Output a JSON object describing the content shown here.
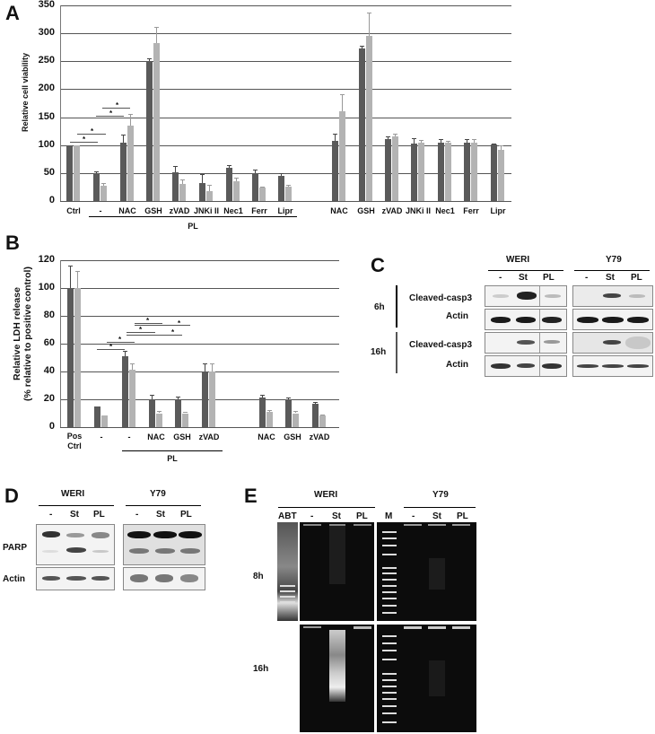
{
  "panels": {
    "A": "A",
    "B": "B",
    "C": "C",
    "D": "D",
    "E": "E"
  },
  "chart_data": [
    {
      "panel": "A",
      "type": "bar",
      "title": "",
      "ylabel": "Relative cell viability",
      "xlabel": "",
      "ylim": [
        0,
        350
      ],
      "yticks": [
        0,
        50,
        100,
        150,
        200,
        250,
        300,
        350
      ],
      "grid": true,
      "legend": null,
      "categories": [
        "Ctrl",
        "-",
        "NAC",
        "GSH",
        "zVAD",
        "JNKi II",
        "Nec1",
        "Ferr",
        "Lipr",
        "NAC",
        "GSH",
        "zVAD",
        "JNKi II",
        "Nec1",
        "Ferr",
        "Lipr"
      ],
      "group_labels": [
        {
          "label": "PL",
          "span": [
            "-",
            "Lipr"
          ]
        }
      ],
      "series": [
        {
          "name": "WERI (dark)",
          "color": "#5a5a5a",
          "values": [
            100,
            50,
            104,
            250,
            52,
            32,
            59,
            50,
            45,
            107,
            273,
            110,
            103,
            105,
            104,
            101
          ],
          "errors": [
            0,
            3,
            15,
            5,
            10,
            16,
            6,
            6,
            4,
            14,
            5,
            5,
            9,
            5,
            7,
            2
          ]
        },
        {
          "name": "Y79 (light)",
          "color": "#b3b3b3",
          "values": [
            100,
            27,
            135,
            282,
            30,
            18,
            36,
            24,
            25,
            160,
            295,
            115,
            105,
            104,
            104,
            92
          ],
          "errors": [
            0,
            5,
            20,
            30,
            8,
            11,
            5,
            2,
            4,
            31,
            42,
            5,
            4,
            4,
            7,
            8
          ]
        }
      ],
      "annotations": [
        "*",
        "*",
        "*",
        "*"
      ]
    },
    {
      "panel": "B",
      "type": "bar",
      "title": "",
      "ylabel": "Relative LDH release (% relative to positive control)",
      "ylabel_line1": "Relative LDH release",
      "ylabel_line2": "(% relative to positive control)",
      "xlabel": "",
      "ylim": [
        0,
        120
      ],
      "yticks": [
        0,
        20,
        40,
        60,
        80,
        100,
        120
      ],
      "grid": true,
      "legend": null,
      "categories": [
        "Pos Ctrl",
        "-",
        "-",
        "NAC",
        "GSH",
        "zVAD",
        "NAC",
        "GSH",
        "zVAD"
      ],
      "group_labels": [
        {
          "label": "PL",
          "span": [
            "-",
            "zVAD"
          ]
        }
      ],
      "series": [
        {
          "name": "WERI (dark)",
          "color": "#5a5a5a",
          "values": [
            100,
            15,
            51,
            20,
            20,
            40,
            21,
            20,
            16.5
          ],
          "errors": [
            16,
            0,
            4,
            3,
            2,
            6,
            2,
            1,
            1.5
          ]
        },
        {
          "name": "Y79 (light)",
          "color": "#b3b3b3",
          "values": [
            100,
            8.5,
            41,
            10,
            10,
            40,
            11,
            10,
            8.5
          ],
          "errors": [
            12,
            0,
            5,
            1.5,
            1,
            6,
            1,
            1.5,
            0.5
          ]
        }
      ],
      "annotations": [
        "*",
        "*",
        "*",
        "*",
        "*",
        "*"
      ]
    }
  ],
  "axisA": {
    "ylabel": "Relative cell viability",
    "ticks": [
      "350",
      "300",
      "250",
      "200",
      "150",
      "100",
      "50",
      "0"
    ],
    "xlabels": [
      "Ctrl",
      "-",
      "NAC",
      "GSH",
      "zVAD",
      "JNKi II",
      "Nec1",
      "Ferr",
      "Lipr",
      "NAC",
      "GSH",
      "zVAD",
      "JNKi II",
      "Nec1",
      "Ferr",
      "Lipr"
    ],
    "group": "PL",
    "star": "*"
  },
  "axisB": {
    "ylabel1": "Relative LDH release",
    "ylabel2": "(% relative to positive control)",
    "ticks": [
      "120",
      "100",
      "80",
      "60",
      "40",
      "20",
      "0"
    ],
    "xlabels": [
      "Pos\nCtrl",
      "-",
      "-",
      "NAC",
      "GSH",
      "zVAD",
      "NAC",
      "GSH",
      "zVAD"
    ],
    "xlabel0a": "Pos",
    "xlabel0b": "Ctrl",
    "group": "PL",
    "star": "*"
  },
  "blotC": {
    "cell_lines": [
      "WERI",
      "Y79"
    ],
    "lanes": [
      "-",
      "St",
      "PL"
    ],
    "timepoints": [
      "6h",
      "16h"
    ],
    "rows": [
      "Cleaved-casp3",
      "Actin"
    ]
  },
  "blotD": {
    "cell_lines": [
      "WERI",
      "Y79"
    ],
    "lanes": [
      "-",
      "St",
      "PL"
    ],
    "rows": [
      "PARP",
      "Actin"
    ]
  },
  "gelE": {
    "cell_lines": [
      "WERI",
      "Y79"
    ],
    "lanes_left": [
      "ABT",
      "-",
      "St",
      "PL"
    ],
    "marker": "M",
    "lanes_right": [
      "-",
      "St",
      "PL"
    ],
    "timepoints": [
      "8h",
      "16h"
    ]
  }
}
